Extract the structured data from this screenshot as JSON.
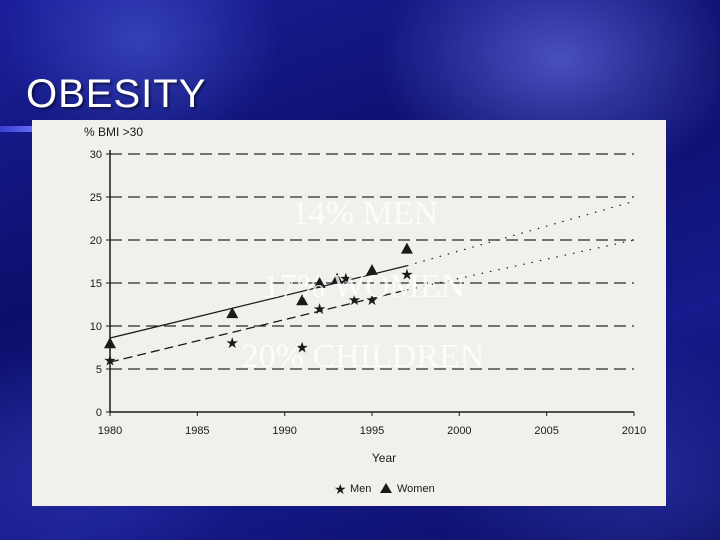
{
  "slide": {
    "title": "OBESITY",
    "overlay_lines": [
      "14% MEN",
      "17% WOMEN",
      "20% CHILDREN"
    ]
  },
  "colors": {
    "background": "#0c0f6a",
    "panel": "#f1f0ec",
    "ink": "#1a1a1a",
    "overlay_text": "#ffffff"
  },
  "chart_data": {
    "type": "scatter",
    "ylabel": "% BMI >30",
    "xlabel": "Year",
    "xlim": [
      1980,
      2010
    ],
    "ylim": [
      0,
      30
    ],
    "x_ticks": [
      1980,
      1985,
      1990,
      1995,
      2000,
      2005,
      2010
    ],
    "y_ticks": [
      0,
      5,
      10,
      15,
      20,
      25,
      30
    ],
    "grid": "horizontal dashed",
    "legend_position": "bottom-center",
    "series": [
      {
        "name": "Men",
        "marker": "star",
        "points": [
          [
            1980,
            6
          ],
          [
            1987,
            8
          ],
          [
            1991,
            7.5
          ],
          [
            1992,
            12
          ],
          [
            1993.5,
            15.5
          ],
          [
            1994,
            13
          ],
          [
            1995,
            13
          ],
          [
            1997,
            16
          ]
        ],
        "trend": [
          [
            1980,
            5.8
          ],
          [
            1997,
            14.2
          ]
        ],
        "projection": [
          [
            1997,
            14.2
          ],
          [
            2010,
            20
          ]
        ]
      },
      {
        "name": "Women",
        "marker": "triangle",
        "points": [
          [
            1980,
            8
          ],
          [
            1987,
            11.5
          ],
          [
            1991,
            13
          ],
          [
            1992,
            15
          ],
          [
            1993,
            15.5
          ],
          [
            1995,
            16.5
          ],
          [
            1997,
            19
          ]
        ],
        "trend": [
          [
            1980,
            8.6
          ],
          [
            1997,
            17
          ]
        ],
        "projection": [
          [
            1997,
            17
          ],
          [
            2010,
            24.5
          ]
        ]
      }
    ]
  }
}
